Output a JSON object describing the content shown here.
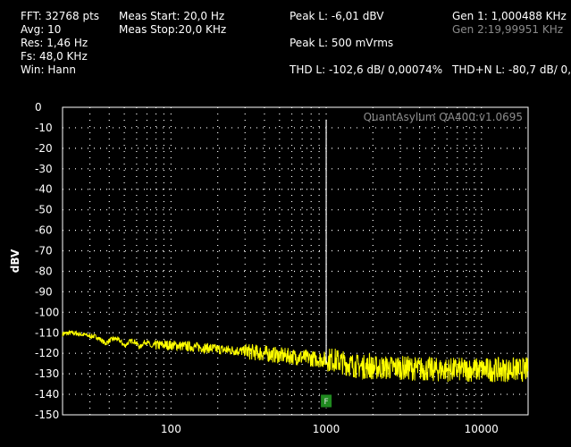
{
  "header": {
    "fft": "FFT: 32768 pts",
    "avg": "Avg: 10",
    "res": "Res: 1,46 Hz",
    "fs": "Fs: 48,0 KHz",
    "win": "Win: Hann",
    "meas_start": "Meas Start: 20,0 Hz",
    "meas_stop": "Meas Stop:20,0 KHz",
    "peak_dbv": "Peak L: -6,01 dBV",
    "peak_vrms": "Peak L: 500 mVrms",
    "thd": "THD L: -102,6 dB/ 0,00074%",
    "gen1": "Gen 1: 1,000488 KHz",
    "gen2": "Gen 2:19,99951 KHz",
    "thdn": "THD+N L: -80,7 dB/ 0,"
  },
  "watermark": "QuantAsylum QA400:v1.0695",
  "marker_label": "F",
  "colors": {
    "trace": "#ffff00",
    "grid": "#ffffff",
    "marker": "#1f8a1f",
    "carrier": "#ffffff"
  },
  "chart_data": {
    "type": "line",
    "xscale": "log",
    "xlim": [
      20,
      20000
    ],
    "ylim": [
      -150,
      0
    ],
    "ylabel": "dBV",
    "yticks": [
      0,
      -10,
      -20,
      -30,
      -40,
      -50,
      -60,
      -70,
      -80,
      -90,
      -100,
      -110,
      -120,
      -130,
      -140,
      -150
    ],
    "xticks": [
      100,
      1000,
      10000
    ],
    "xtick_labels": [
      "100",
      "1000",
      "10000"
    ],
    "grid": true,
    "series": [
      {
        "x": [
          20,
          25,
          30,
          40,
          50,
          70,
          100,
          150,
          200,
          300,
          500,
          700,
          900,
          1000,
          1100,
          1500,
          2000,
          3000,
          5000,
          10000,
          20000
        ],
        "y": [
          -112,
          -109,
          -113,
          -114,
          -115,
          -116,
          -116,
          -117,
          -118,
          -119,
          -121,
          -122,
          -123,
          -6,
          -123,
          -126,
          -127,
          -127,
          -128,
          -128,
          -128
        ]
      }
    ],
    "carrier": {
      "x": 1000,
      "y": -6
    },
    "spurs": [
      {
        "x": 1900,
        "y": -120
      },
      {
        "x": 2900,
        "y": -122
      }
    ],
    "marker_x": 1000
  }
}
